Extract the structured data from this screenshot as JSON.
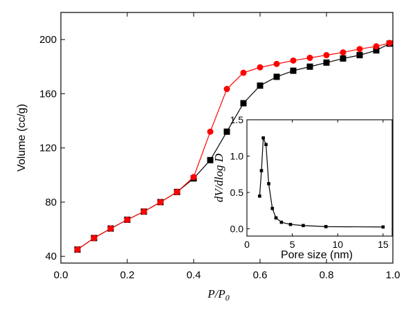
{
  "chart_data": [
    {
      "type": "line",
      "title": "",
      "xlabel": "P/P",
      "xlabel_sub": "0",
      "ylabel": "Volume (cc/g)",
      "xlim": [
        0.0,
        1.0
      ],
      "ylim": [
        35,
        220
      ],
      "xticks": [
        "0.0",
        "0.2",
        "0.4",
        "0.6",
        "0.8",
        "1.0"
      ],
      "yticks": [
        "40",
        "80",
        "120",
        "160",
        "200"
      ],
      "series": [
        {
          "color": "#000000",
          "marker": "square",
          "x": [
            0.05,
            0.1,
            0.15,
            0.2,
            0.25,
            0.3,
            0.35,
            0.4,
            0.45,
            0.5,
            0.55,
            0.6,
            0.65,
            0.7,
            0.75,
            0.8,
            0.85,
            0.9,
            0.95,
            0.99
          ],
          "y": [
            45,
            53.5,
            60.5,
            67,
            73,
            80,
            87.5,
            97.5,
            111,
            132,
            153,
            166,
            172.5,
            177,
            180,
            183,
            186,
            188.5,
            192,
            197
          ]
        },
        {
          "color": "#ff0000",
          "marker": "circle",
          "x": [
            0.05,
            0.1,
            0.15,
            0.2,
            0.25,
            0.3,
            0.35,
            0.4,
            0.45,
            0.5,
            0.55,
            0.6,
            0.65,
            0.7,
            0.75,
            0.8,
            0.85,
            0.9,
            0.95,
            0.99
          ],
          "y": [
            45,
            53.5,
            60.5,
            67,
            73,
            80,
            87.5,
            98.5,
            132,
            163.5,
            175.5,
            179.5,
            182,
            184.5,
            186.5,
            188.5,
            190.5,
            193,
            195,
            197.5
          ]
        }
      ]
    },
    {
      "type": "line",
      "title": "",
      "xlabel": "Pore size (nm)",
      "ylabel": "dV/dlog D",
      "xlim": [
        0,
        16
      ],
      "ylim": [
        -0.1,
        1.5
      ],
      "xticks": [
        "0",
        "5",
        "10",
        "15"
      ],
      "yticks": [
        "0.0",
        "0.5",
        "1.0",
        "1.5"
      ],
      "series": [
        {
          "color": "#000000",
          "marker": "square",
          "x": [
            1.4,
            1.6,
            1.8,
            2.1,
            2.4,
            2.8,
            3.2,
            3.8,
            4.8,
            6.2,
            8.7,
            15.0
          ],
          "y": [
            0.45,
            0.8,
            1.25,
            1.16,
            0.62,
            0.28,
            0.15,
            0.09,
            0.06,
            0.045,
            0.03,
            0.025
          ]
        }
      ]
    }
  ]
}
